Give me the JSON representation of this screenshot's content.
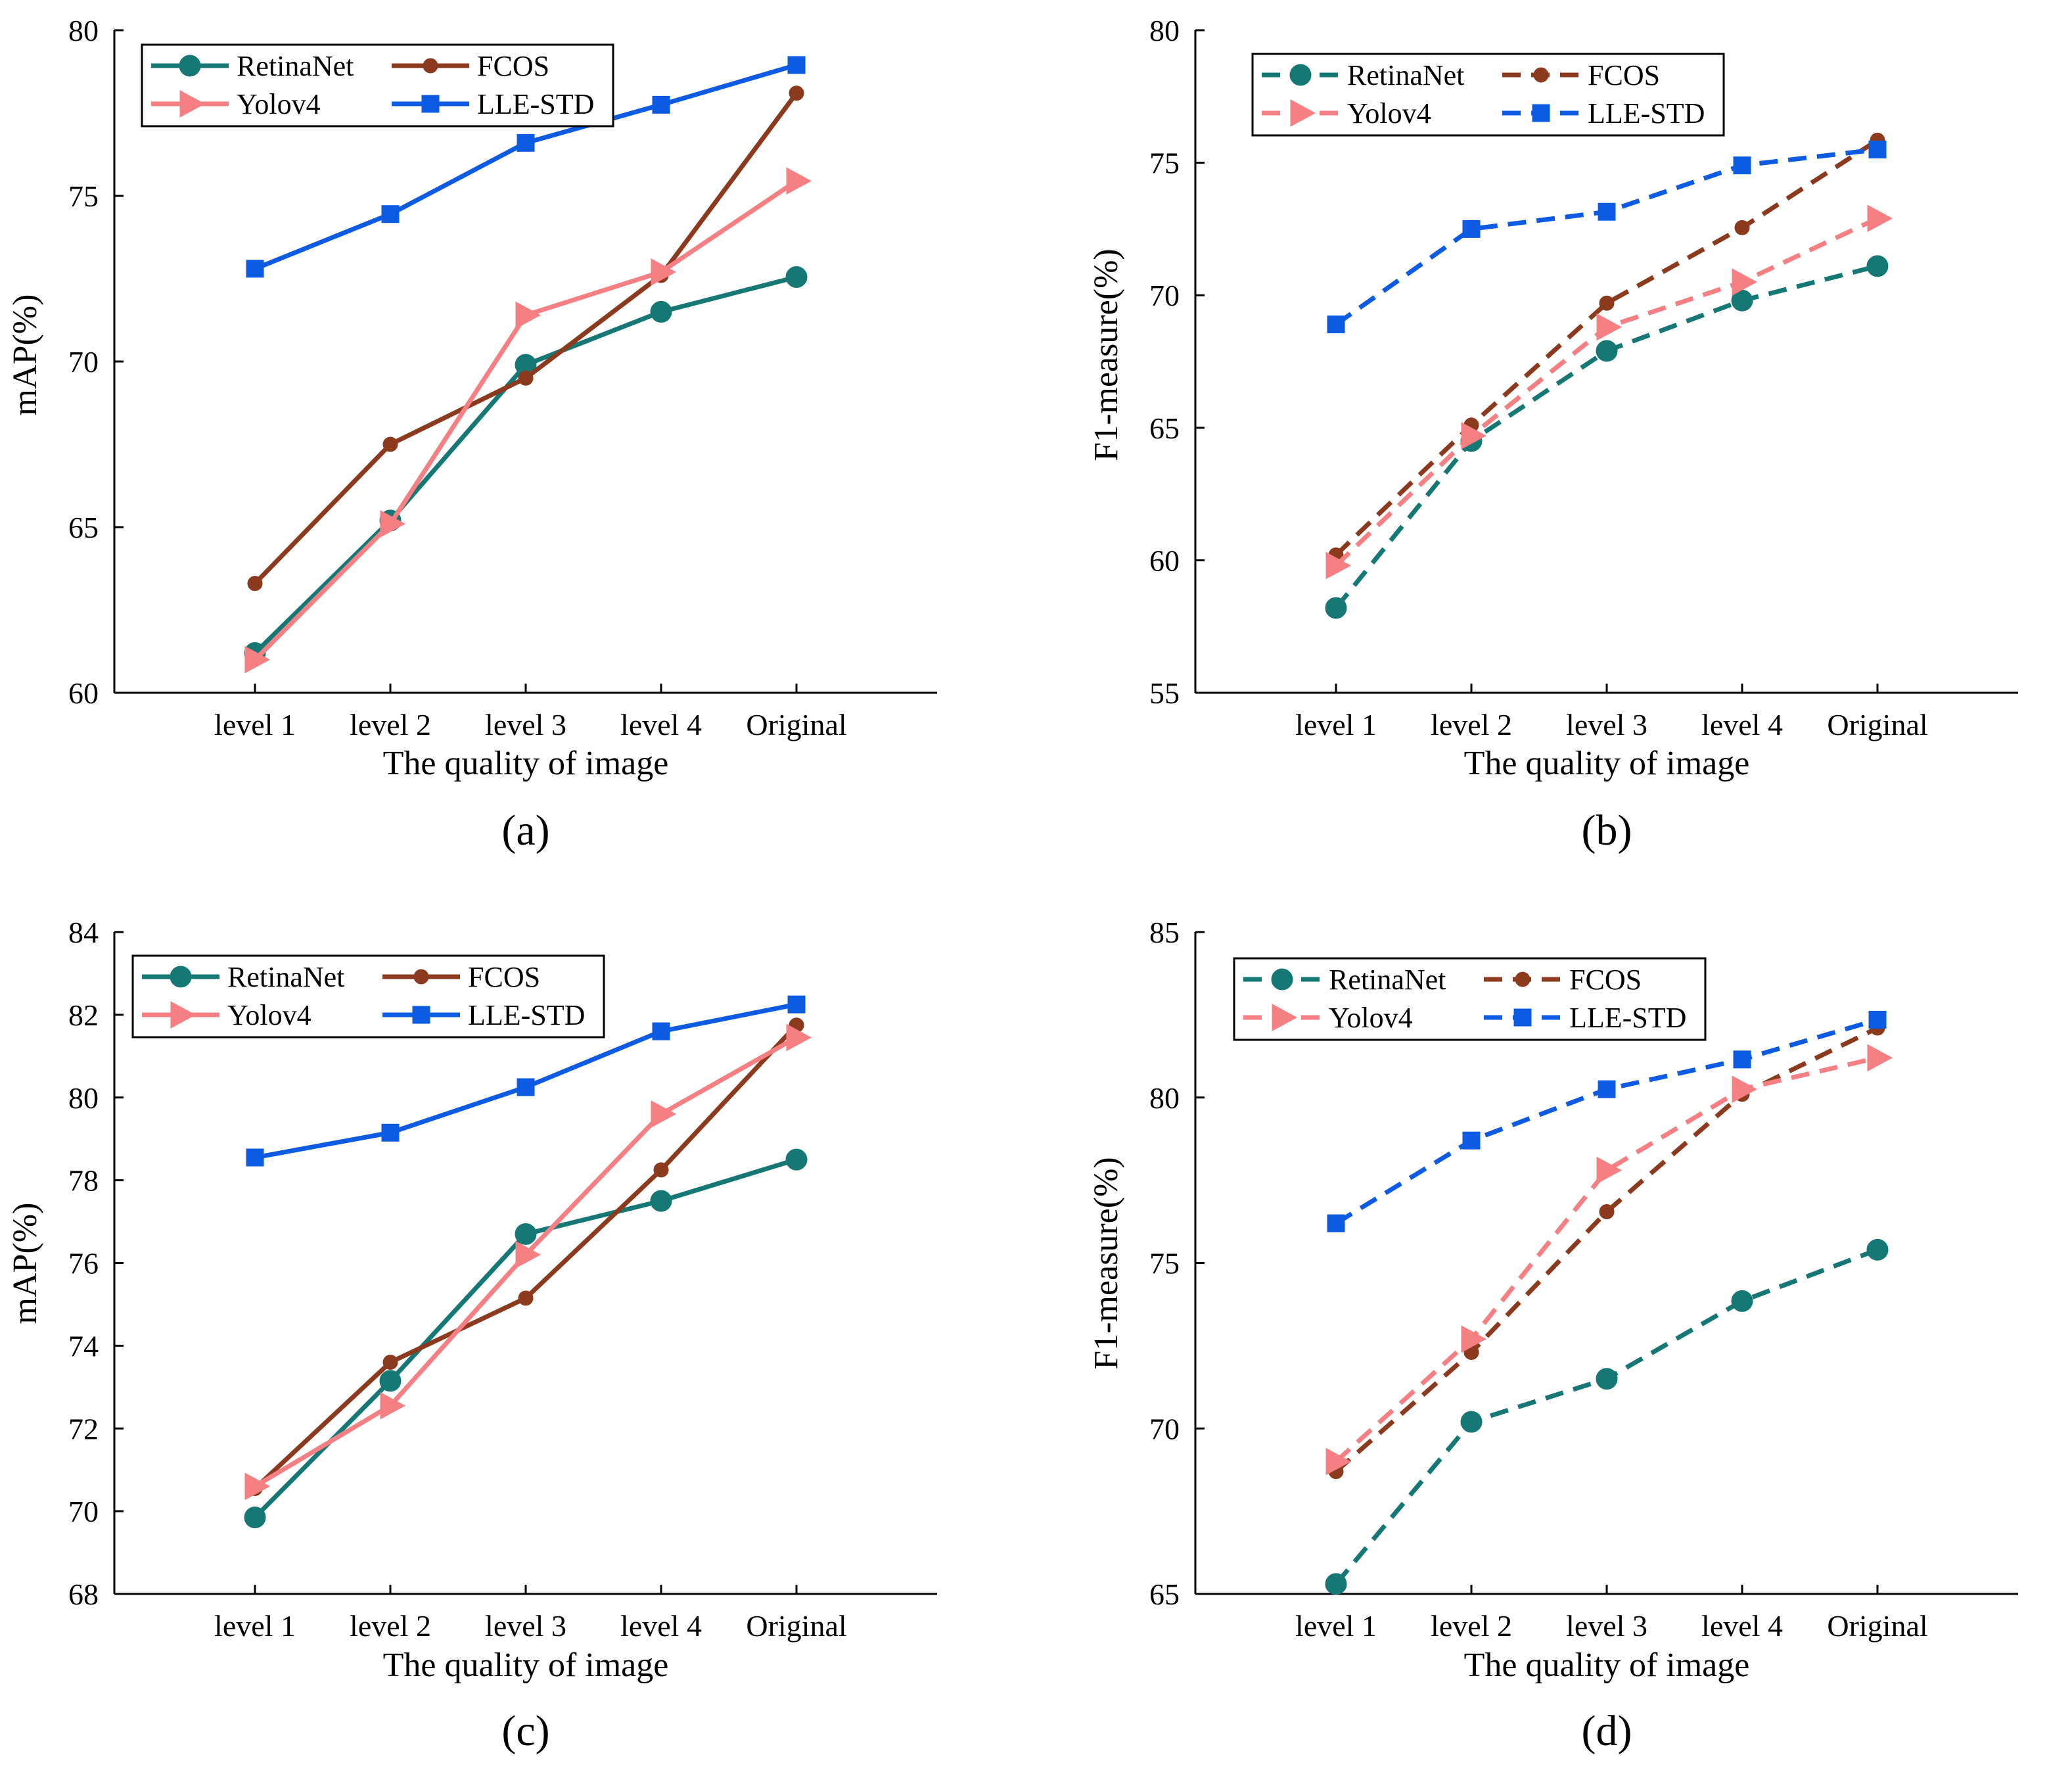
{
  "figure": {
    "style": {
      "colors": {
        "RetinaNet": "#167874",
        "FCOS": "#8B3A1E",
        "Yolov4": "#F67F83",
        "LLE-STD": "#0D5BE3"
      },
      "markers": {
        "RetinaNet": "circle",
        "FCOS": "small-circle",
        "Yolov4": "triangle-right",
        "LLE-STD": "square"
      }
    }
  },
  "chart_data": [
    {
      "id": "a",
      "type": "line",
      "panel_label": "(a)",
      "line_style": "solid",
      "xlabel": "The quality of image",
      "ylabel": "mAP(%)",
      "categories": [
        "level 1",
        "level 2",
        "level 3",
        "level 4",
        "Original"
      ],
      "ylim": [
        60,
        80
      ],
      "yticks": [
        60,
        65,
        70,
        75,
        80
      ],
      "legend_position": "top-left",
      "series": [
        {
          "name": "RetinaNet",
          "values": [
            61.2,
            65.2,
            69.9,
            71.5,
            72.55
          ]
        },
        {
          "name": "FCOS",
          "values": [
            63.3,
            67.5,
            69.5,
            72.6,
            78.1
          ]
        },
        {
          "name": "Yolov4",
          "values": [
            61.0,
            65.1,
            71.4,
            72.7,
            75.45
          ]
        },
        {
          "name": "LLE-STD",
          "values": [
            72.8,
            74.45,
            76.6,
            77.75,
            78.95
          ]
        }
      ]
    },
    {
      "id": "b",
      "type": "line",
      "panel_label": "(b)",
      "line_style": "dashed",
      "xlabel": "The quality of image",
      "ylabel": "F1-measure(%)",
      "categories": [
        "level 1",
        "level 2",
        "level 3",
        "level 4",
        "Original"
      ],
      "ylim": [
        55,
        80
      ],
      "yticks": [
        55,
        60,
        65,
        70,
        75,
        80
      ],
      "legend_position": "top-left",
      "series": [
        {
          "name": "RetinaNet",
          "values": [
            58.2,
            64.5,
            67.9,
            69.8,
            71.1
          ]
        },
        {
          "name": "FCOS",
          "values": [
            60.2,
            65.1,
            69.7,
            72.55,
            75.85
          ]
        },
        {
          "name": "Yolov4",
          "values": [
            59.8,
            64.7,
            68.8,
            70.5,
            72.9
          ]
        },
        {
          "name": "LLE-STD",
          "values": [
            68.9,
            72.5,
            73.15,
            74.9,
            75.5
          ]
        }
      ]
    },
    {
      "id": "c",
      "type": "line",
      "panel_label": "(c)",
      "line_style": "solid",
      "xlabel": "The quality of image",
      "ylabel": "mAP(%)",
      "categories": [
        "level 1",
        "level 2",
        "level 3",
        "level 4",
        "Original"
      ],
      "ylim": [
        68,
        84
      ],
      "yticks": [
        68,
        70,
        72,
        74,
        76,
        78,
        80,
        82,
        84
      ],
      "legend_position": "top-left",
      "series": [
        {
          "name": "RetinaNet",
          "values": [
            69.85,
            73.15,
            76.7,
            77.5,
            78.5
          ]
        },
        {
          "name": "FCOS",
          "values": [
            70.55,
            73.6,
            75.15,
            78.25,
            81.75
          ]
        },
        {
          "name": "Yolov4",
          "values": [
            70.6,
            72.55,
            76.2,
            79.6,
            81.45
          ]
        },
        {
          "name": "LLE-STD",
          "values": [
            78.55,
            79.15,
            80.25,
            81.6,
            82.25
          ]
        }
      ]
    },
    {
      "id": "d",
      "type": "line",
      "panel_label": "(d)",
      "line_style": "dashed",
      "xlabel": "The quality of image",
      "ylabel": "F1-measure(%)",
      "categories": [
        "level 1",
        "level 2",
        "level 3",
        "level 4",
        "Original"
      ],
      "ylim": [
        65,
        85
      ],
      "yticks": [
        65,
        70,
        75,
        80,
        85
      ],
      "legend_position": "top-left",
      "series": [
        {
          "name": "RetinaNet",
          "values": [
            65.3,
            70.2,
            71.5,
            73.85,
            75.4
          ]
        },
        {
          "name": "FCOS",
          "values": [
            68.7,
            72.3,
            76.55,
            80.1,
            82.1
          ]
        },
        {
          "name": "Yolov4",
          "values": [
            69.0,
            72.7,
            77.8,
            80.25,
            81.2
          ]
        },
        {
          "name": "LLE-STD",
          "values": [
            76.2,
            78.7,
            80.25,
            81.15,
            82.35
          ]
        }
      ]
    }
  ]
}
